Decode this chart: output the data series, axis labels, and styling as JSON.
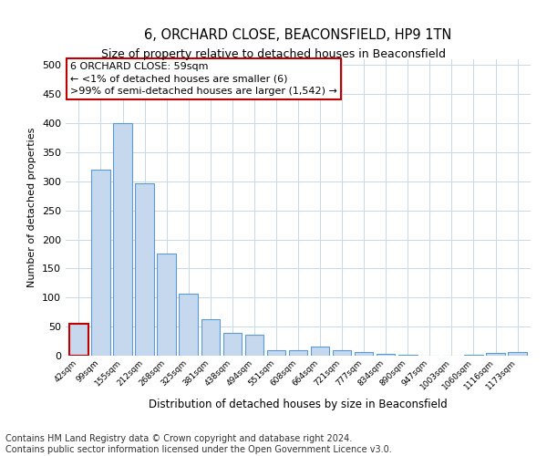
{
  "title": "6, ORCHARD CLOSE, BEACONSFIELD, HP9 1TN",
  "subtitle": "Size of property relative to detached houses in Beaconsfield",
  "xlabel": "Distribution of detached houses by size in Beaconsfield",
  "ylabel": "Number of detached properties",
  "categories": [
    "42sqm",
    "99sqm",
    "155sqm",
    "212sqm",
    "268sqm",
    "325sqm",
    "381sqm",
    "438sqm",
    "494sqm",
    "551sqm",
    "608sqm",
    "664sqm",
    "721sqm",
    "777sqm",
    "834sqm",
    "890sqm",
    "947sqm",
    "1003sqm",
    "1060sqm",
    "1116sqm",
    "1173sqm"
  ],
  "values": [
    55,
    320,
    400,
    297,
    175,
    107,
    63,
    40,
    36,
    10,
    10,
    15,
    9,
    6,
    3,
    1,
    0,
    0,
    1,
    5,
    6
  ],
  "bar_color": "#c5d8ed",
  "bar_edge_color": "#5b9bd5",
  "highlight_edge_color": "#c00000",
  "annotation_box_text": "6 ORCHARD CLOSE: 59sqm\n← <1% of detached houses are smaller (6)\n>99% of semi-detached houses are larger (1,542) →",
  "annotation_box_edge_color": "#c00000",
  "ylim": [
    0,
    510
  ],
  "yticks": [
    0,
    50,
    100,
    150,
    200,
    250,
    300,
    350,
    400,
    450,
    500
  ],
  "footer": "Contains HM Land Registry data © Crown copyright and database right 2024.\nContains public sector information licensed under the Open Government Licence v3.0.",
  "bg_color": "#ffffff",
  "grid_color": "#c8d8e8",
  "title_fontsize": 10.5,
  "subtitle_fontsize": 9,
  "annotation_fontsize": 8,
  "footer_fontsize": 7
}
